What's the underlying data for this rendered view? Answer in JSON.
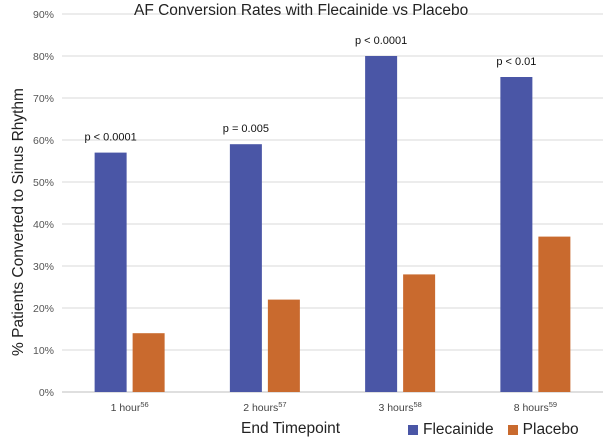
{
  "chart_data": {
    "type": "bar",
    "title": "AF Conversion Rates with Flecainide vs Placebo",
    "xlabel": "End Timepoint",
    "ylabel": "% Patients Converted to Sinus Rhythm",
    "ylim": [
      0,
      90
    ],
    "yticks": [
      "0%",
      "10%",
      "20%",
      "30%",
      "40%",
      "50%",
      "60%",
      "70%",
      "80%",
      "90%"
    ],
    "categories": [
      {
        "label": "1 hour",
        "ref": "56"
      },
      {
        "label": "2 hours",
        "ref": "57"
      },
      {
        "label": "3 hours",
        "ref": "58"
      },
      {
        "label": "8 hours",
        "ref": "59"
      }
    ],
    "series": [
      {
        "name": "Flecainide",
        "color": "#4a56a6",
        "values": [
          57,
          59,
          80,
          75
        ]
      },
      {
        "name": "Placebo",
        "color": "#c96a2e",
        "values": [
          14,
          22,
          28,
          37
        ]
      }
    ],
    "annotations": [
      "p < 0.0001",
      "p = 0.005",
      "p < 0.0001",
      "p < 0.01"
    ],
    "grid": true,
    "legend": "bottom-right"
  }
}
